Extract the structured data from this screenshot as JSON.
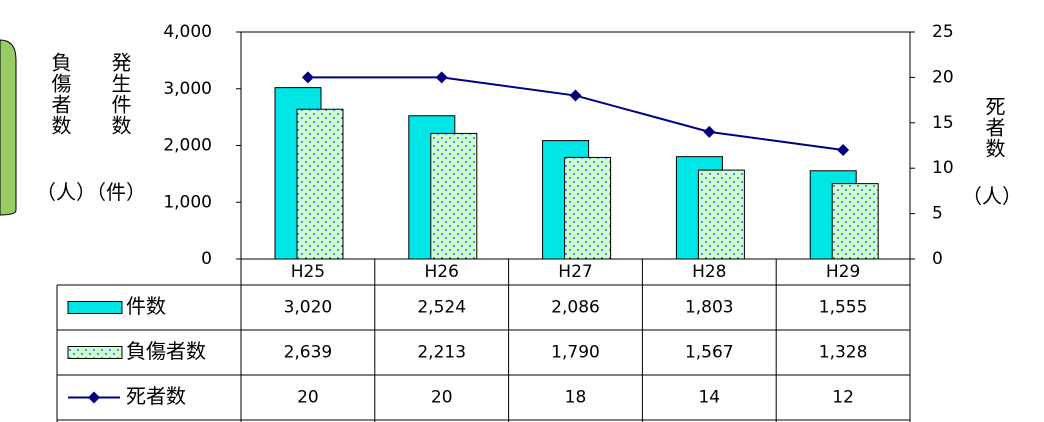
{
  "chart_data": {
    "type": "bar",
    "categories": [
      "H25",
      "H26",
      "H27",
      "H28",
      "H29"
    ],
    "series": [
      {
        "name": "件数",
        "color": "#00e6e6",
        "values": [
          3020,
          2524,
          2086,
          1803,
          1555
        ],
        "value_labels": [
          "3,020",
          "2,524",
          "2,086",
          "1,803",
          "1,555"
        ]
      },
      {
        "name": "負傷者数",
        "color": "#ccffcc",
        "values": [
          2639,
          2213,
          1790,
          1567,
          1328
        ],
        "value_labels": [
          "2,639",
          "2,213",
          "1,790",
          "1,567",
          "1,328"
        ]
      },
      {
        "name": "死者数",
        "type": "line",
        "axis": "y2",
        "color": "#000080",
        "values": [
          20,
          20,
          18,
          14,
          12
        ]
      }
    ],
    "y_labels": [
      {
        "text": "負傷者数",
        "unit": "（人）"
      },
      {
        "text": "発生件数",
        "unit": "（件）"
      }
    ],
    "y2_label": {
      "text": "死者数",
      "unit": "（人）"
    },
    "ylim": [
      0,
      4000
    ],
    "yticks": [
      0,
      {
        "value": 1000,
        "label": "1,000"
      },
      {
        "value": 2000,
        "label": "2,000"
      },
      {
        "value": 3000,
        "label": "3,000"
      },
      {
        "value": 4000,
        "label": "4,000"
      }
    ],
    "y2lim": [
      0,
      25
    ],
    "y2ticks": [
      0,
      5,
      10,
      15,
      20,
      25
    ]
  }
}
